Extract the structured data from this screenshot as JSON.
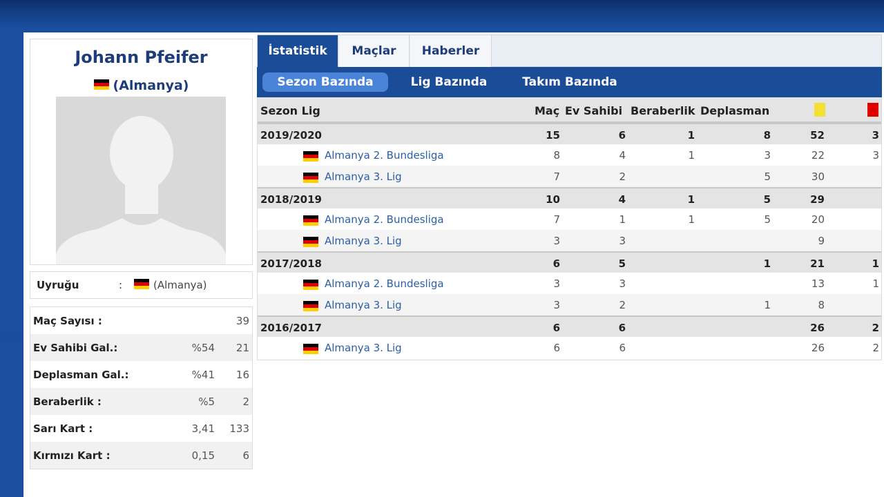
{
  "player": {
    "name": "Johann Pfeifer",
    "nation": "(Almanya)"
  },
  "nationality": {
    "label": "Uyruğu",
    "colon": ":",
    "value": "(Almanya)"
  },
  "summary": [
    {
      "label": "Maç Sayısı :",
      "pct": "",
      "value": "39"
    },
    {
      "label": "Ev Sahibi Gal.:",
      "pct": "%54",
      "value": "21"
    },
    {
      "label": "Deplasman Gal.:",
      "pct": "%41",
      "value": "16"
    },
    {
      "label": "Beraberlik :",
      "pct": "%5",
      "value": "2"
    },
    {
      "label": "Sarı Kart :",
      "pct": "3,41",
      "value": "133"
    },
    {
      "label": "Kırmızı Kart :",
      "pct": "0,15",
      "value": "6"
    }
  ],
  "tabs": [
    "İstatistik",
    "Maçlar",
    "Haberler"
  ],
  "subtabs": [
    "Sezon Bazında",
    "Lig Bazında",
    "Takım Bazında"
  ],
  "table": {
    "headers": {
      "season_league": "Sezon Lig",
      "mac": "Maç",
      "ev": "Ev Sahibi",
      "ber": "Beraberlik",
      "dep": "Deplasman"
    },
    "seasons": [
      {
        "season": "2019/2020",
        "mac": "15",
        "ev": "6",
        "ber": "1",
        "dep": "8",
        "yel": "52",
        "red": "3",
        "leagues": [
          {
            "name": "Almanya 2. Bundesliga",
            "mac": "8",
            "ev": "4",
            "ber": "1",
            "dep": "3",
            "yel": "22",
            "red": "3"
          },
          {
            "name": "Almanya 3. Lig",
            "mac": "7",
            "ev": "2",
            "ber": "",
            "dep": "5",
            "yel": "30",
            "red": ""
          }
        ]
      },
      {
        "season": "2018/2019",
        "mac": "10",
        "ev": "4",
        "ber": "1",
        "dep": "5",
        "yel": "29",
        "red": "",
        "leagues": [
          {
            "name": "Almanya 2. Bundesliga",
            "mac": "7",
            "ev": "1",
            "ber": "1",
            "dep": "5",
            "yel": "20",
            "red": ""
          },
          {
            "name": "Almanya 3. Lig",
            "mac": "3",
            "ev": "3",
            "ber": "",
            "dep": "",
            "yel": "9",
            "red": ""
          }
        ]
      },
      {
        "season": "2017/2018",
        "mac": "6",
        "ev": "5",
        "ber": "",
        "dep": "1",
        "yel": "21",
        "red": "1",
        "leagues": [
          {
            "name": "Almanya 2. Bundesliga",
            "mac": "3",
            "ev": "3",
            "ber": "",
            "dep": "",
            "yel": "13",
            "red": "1"
          },
          {
            "name": "Almanya 3. Lig",
            "mac": "3",
            "ev": "2",
            "ber": "",
            "dep": "1",
            "yel": "8",
            "red": ""
          }
        ]
      },
      {
        "season": "2016/2017",
        "mac": "6",
        "ev": "6",
        "ber": "",
        "dep": "",
        "yel": "26",
        "red": "2",
        "leagues": [
          {
            "name": "Almanya 3. Lig",
            "mac": "6",
            "ev": "6",
            "ber": "",
            "dep": "",
            "yel": "26",
            "red": "2"
          }
        ]
      }
    ]
  },
  "colors": {
    "primary": "#1a4c98",
    "name_text": "#1d3d7a",
    "yellow_card": "#f2e033",
    "red_card": "#e00000"
  },
  "icons": {
    "flag": "germany-flag-icon",
    "avatar": "avatar-silhouette-icon",
    "yellow": "yellow-card-icon",
    "red": "red-card-icon"
  }
}
